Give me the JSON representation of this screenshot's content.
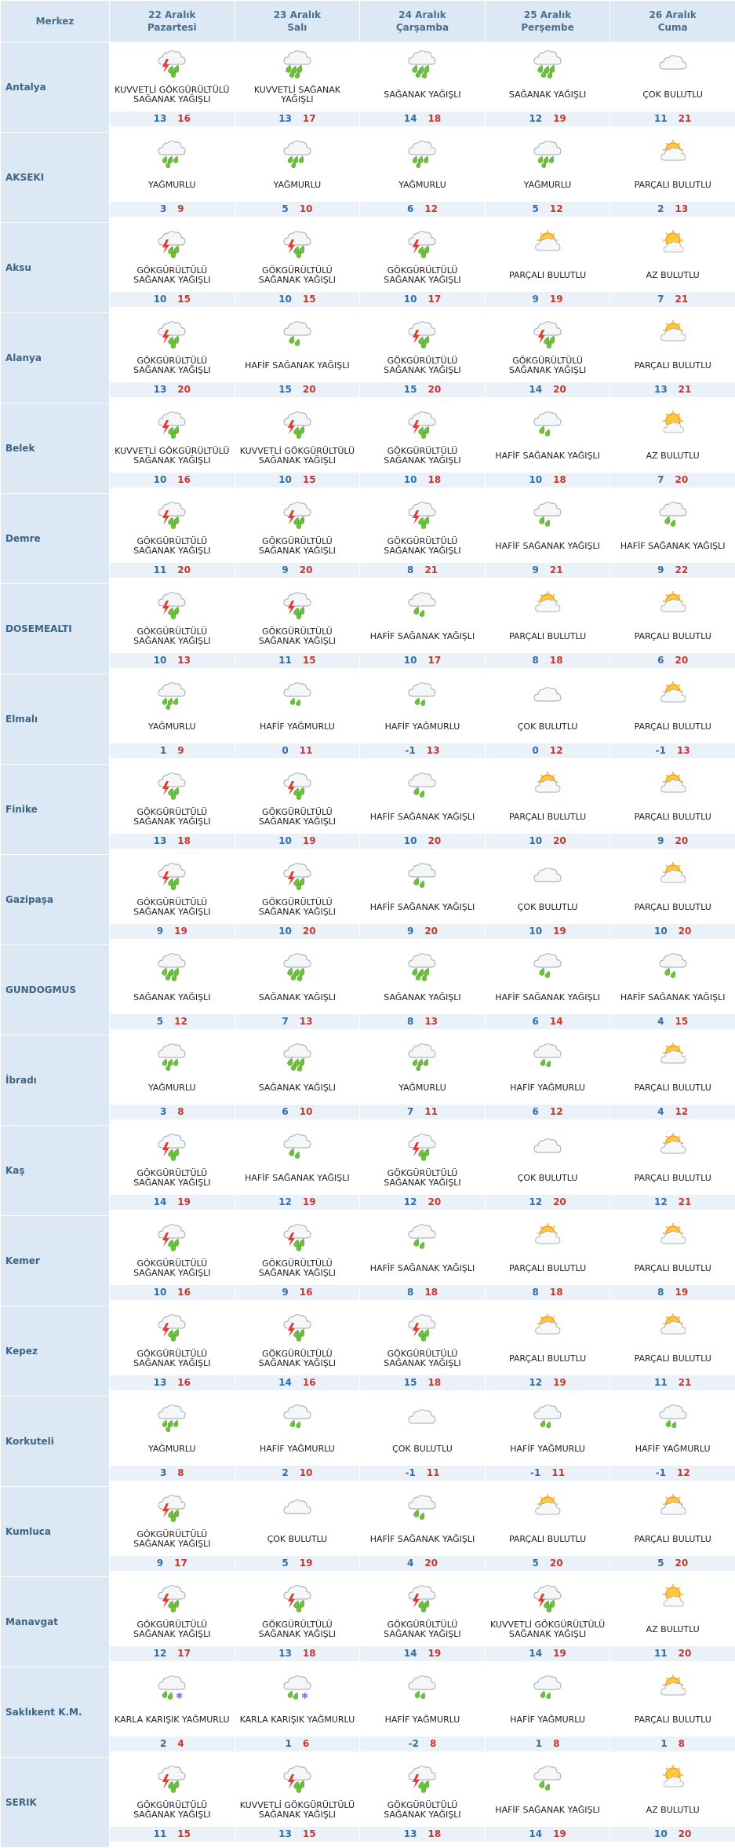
{
  "header": {
    "location_label": "Merkez",
    "days": [
      {
        "date": "22 Aralık",
        "weekday": "Pazartesi"
      },
      {
        "date": "23 Aralık",
        "weekday": "Salı"
      },
      {
        "date": "24 Aralık",
        "weekday": "Çarşamba"
      },
      {
        "date": "25 Aralık",
        "weekday": "Perşembe"
      },
      {
        "date": "26 Aralık",
        "weekday": "Cuma"
      }
    ]
  },
  "colors": {
    "header_bg": "#dce8f3",
    "temp_row_bg": "#eaf1f8",
    "min_temp": "#2f6ea6",
    "max_temp": "#c8372d",
    "location_text": "#3e6485"
  },
  "rows": [
    {
      "name": "Antalya",
      "days": [
        {
          "icon": "thunder",
          "desc": "KUVVETLİ GÖKGÜRÜLTÜLÜ SAĞANAK YAĞIŞLI",
          "min": "13",
          "max": "16"
        },
        {
          "icon": "heavy-shower",
          "desc": "KUVVETLİ SAĞANAK YAĞIŞLI",
          "min": "13",
          "max": "17"
        },
        {
          "icon": "shower",
          "desc": "SAĞANAK YAĞIŞLI",
          "min": "14",
          "max": "18"
        },
        {
          "icon": "shower",
          "desc": "SAĞANAK YAĞIŞLI",
          "min": "12",
          "max": "19"
        },
        {
          "icon": "cloudy",
          "desc": "ÇOK BULUTLU",
          "min": "11",
          "max": "21"
        }
      ]
    },
    {
      "name": "AKSEKI",
      "days": [
        {
          "icon": "rain",
          "desc": "YAĞMURLU",
          "min": "3",
          "max": "9"
        },
        {
          "icon": "rain",
          "desc": "YAĞMURLU",
          "min": "5",
          "max": "10"
        },
        {
          "icon": "rain",
          "desc": "YAĞMURLU",
          "min": "6",
          "max": "12"
        },
        {
          "icon": "rain",
          "desc": "YAĞMURLU",
          "min": "5",
          "max": "12"
        },
        {
          "icon": "partly",
          "desc": "PARÇALI BULUTLU",
          "min": "2",
          "max": "13"
        }
      ]
    },
    {
      "name": "Aksu",
      "days": [
        {
          "icon": "thunder",
          "desc": "GÖKGÜRÜLTÜLÜ SAĞANAK YAĞIŞLI",
          "min": "10",
          "max": "15"
        },
        {
          "icon": "thunder",
          "desc": "GÖKGÜRÜLTÜLÜ SAĞANAK YAĞIŞLI",
          "min": "10",
          "max": "15"
        },
        {
          "icon": "thunder",
          "desc": "GÖKGÜRÜLTÜLÜ SAĞANAK YAĞIŞLI",
          "min": "10",
          "max": "17"
        },
        {
          "icon": "partly",
          "desc": "PARÇALI BULUTLU",
          "min": "9",
          "max": "19"
        },
        {
          "icon": "sunny",
          "desc": "AZ BULUTLU",
          "min": "7",
          "max": "21"
        }
      ]
    },
    {
      "name": "Alanya",
      "days": [
        {
          "icon": "thunder",
          "desc": "GÖKGÜRÜLTÜLÜ SAĞANAK YAĞIŞLI",
          "min": "13",
          "max": "20"
        },
        {
          "icon": "light-shower",
          "desc": "HAFİF SAĞANAK YAĞIŞLI",
          "min": "15",
          "max": "20"
        },
        {
          "icon": "thunder",
          "desc": "GÖKGÜRÜLTÜLÜ SAĞANAK YAĞIŞLI",
          "min": "15",
          "max": "20"
        },
        {
          "icon": "thunder",
          "desc": "GÖKGÜRÜLTÜLÜ SAĞANAK YAĞIŞLI",
          "min": "14",
          "max": "20"
        },
        {
          "icon": "partly",
          "desc": "PARÇALI BULUTLU",
          "min": "13",
          "max": "21"
        }
      ]
    },
    {
      "name": "Belek",
      "days": [
        {
          "icon": "thunder",
          "desc": "KUVVETLİ GÖKGÜRÜLTÜLÜ SAĞANAK YAĞIŞLI",
          "min": "10",
          "max": "16"
        },
        {
          "icon": "thunder",
          "desc": "KUVVETLİ GÖKGÜRÜLTÜLÜ SAĞANAK YAĞIŞLI",
          "min": "10",
          "max": "15"
        },
        {
          "icon": "thunder",
          "desc": "GÖKGÜRÜLTÜLÜ SAĞANAK YAĞIŞLI",
          "min": "10",
          "max": "18"
        },
        {
          "icon": "light-shower",
          "desc": "HAFİF SAĞANAK YAĞIŞLI",
          "min": "10",
          "max": "18"
        },
        {
          "icon": "sunny",
          "desc": "AZ BULUTLU",
          "min": "7",
          "max": "20"
        }
      ]
    },
    {
      "name": "Demre",
      "days": [
        {
          "icon": "thunder",
          "desc": "GÖKGÜRÜLTÜLÜ SAĞANAK YAĞIŞLI",
          "min": "11",
          "max": "20"
        },
        {
          "icon": "thunder",
          "desc": "GÖKGÜRÜLTÜLÜ SAĞANAK YAĞIŞLI",
          "min": "9",
          "max": "20"
        },
        {
          "icon": "thunder",
          "desc": "GÖKGÜRÜLTÜLÜ SAĞANAK YAĞIŞLI",
          "min": "8",
          "max": "21"
        },
        {
          "icon": "light-shower",
          "desc": "HAFİF SAĞANAK YAĞIŞLI",
          "min": "9",
          "max": "21"
        },
        {
          "icon": "light-shower",
          "desc": "HAFİF SAĞANAK YAĞIŞLI",
          "min": "9",
          "max": "22"
        }
      ]
    },
    {
      "name": "DOSEMEALTI",
      "days": [
        {
          "icon": "thunder",
          "desc": "GÖKGÜRÜLTÜLÜ SAĞANAK YAĞIŞLI",
          "min": "10",
          "max": "13"
        },
        {
          "icon": "thunder",
          "desc": "GÖKGÜRÜLTÜLÜ SAĞANAK YAĞIŞLI",
          "min": "11",
          "max": "15"
        },
        {
          "icon": "light-shower",
          "desc": "HAFİF SAĞANAK YAĞIŞLI",
          "min": "10",
          "max": "17"
        },
        {
          "icon": "partly",
          "desc": "PARÇALI BULUTLU",
          "min": "8",
          "max": "18"
        },
        {
          "icon": "partly",
          "desc": "PARÇALI BULUTLU",
          "min": "6",
          "max": "20"
        }
      ]
    },
    {
      "name": "Elmalı",
      "days": [
        {
          "icon": "rain",
          "desc": "YAĞMURLU",
          "min": "1",
          "max": "9"
        },
        {
          "icon": "light-rain",
          "desc": "HAFİF YAĞMURLU",
          "min": "0",
          "max": "11"
        },
        {
          "icon": "light-rain",
          "desc": "HAFİF YAĞMURLU",
          "min": "-1",
          "max": "13"
        },
        {
          "icon": "cloudy",
          "desc": "ÇOK BULUTLU",
          "min": "0",
          "max": "12"
        },
        {
          "icon": "partly",
          "desc": "PARÇALI BULUTLU",
          "min": "-1",
          "max": "13"
        }
      ]
    },
    {
      "name": "Finike",
      "days": [
        {
          "icon": "thunder",
          "desc": "GÖKGÜRÜLTÜLÜ SAĞANAK YAĞIŞLI",
          "min": "13",
          "max": "18"
        },
        {
          "icon": "thunder",
          "desc": "GÖKGÜRÜLTÜLÜ SAĞANAK YAĞIŞLI",
          "min": "10",
          "max": "19"
        },
        {
          "icon": "light-shower",
          "desc": "HAFİF SAĞANAK YAĞIŞLI",
          "min": "10",
          "max": "20"
        },
        {
          "icon": "partly",
          "desc": "PARÇALI BULUTLU",
          "min": "10",
          "max": "20"
        },
        {
          "icon": "partly",
          "desc": "PARÇALI BULUTLU",
          "min": "9",
          "max": "20"
        }
      ]
    },
    {
      "name": "Gazipaşa",
      "days": [
        {
          "icon": "thunder",
          "desc": "GÖKGÜRÜLTÜLÜ SAĞANAK YAĞIŞLI",
          "min": "9",
          "max": "19"
        },
        {
          "icon": "thunder",
          "desc": "GÖKGÜRÜLTÜLÜ SAĞANAK YAĞIŞLI",
          "min": "10",
          "max": "20"
        },
        {
          "icon": "light-shower",
          "desc": "HAFİF SAĞANAK YAĞIŞLI",
          "min": "9",
          "max": "20"
        },
        {
          "icon": "cloudy",
          "desc": "ÇOK BULUTLU",
          "min": "10",
          "max": "19"
        },
        {
          "icon": "partly",
          "desc": "PARÇALI BULUTLU",
          "min": "10",
          "max": "20"
        }
      ]
    },
    {
      "name": "GUNDOGMUS",
      "days": [
        {
          "icon": "shower",
          "desc": "SAĞANAK YAĞIŞLI",
          "min": "5",
          "max": "12"
        },
        {
          "icon": "shower",
          "desc": "SAĞANAK YAĞIŞLI",
          "min": "7",
          "max": "13"
        },
        {
          "icon": "shower",
          "desc": "SAĞANAK YAĞIŞLI",
          "min": "8",
          "max": "13"
        },
        {
          "icon": "light-shower",
          "desc": "HAFİF SAĞANAK YAĞIŞLI",
          "min": "6",
          "max": "14"
        },
        {
          "icon": "light-shower",
          "desc": "HAFİF SAĞANAK YAĞIŞLI",
          "min": "4",
          "max": "15"
        }
      ]
    },
    {
      "name": "İbradı",
      "days": [
        {
          "icon": "rain",
          "desc": "YAĞMURLU",
          "min": "3",
          "max": "8"
        },
        {
          "icon": "shower",
          "desc": "SAĞANAK YAĞIŞLI",
          "min": "6",
          "max": "10"
        },
        {
          "icon": "rain",
          "desc": "YAĞMURLU",
          "min": "7",
          "max": "11"
        },
        {
          "icon": "light-rain",
          "desc": "HAFİF YAĞMURLU",
          "min": "6",
          "max": "12"
        },
        {
          "icon": "partly",
          "desc": "PARÇALI BULUTLU",
          "min": "4",
          "max": "12"
        }
      ]
    },
    {
      "name": "Kaş",
      "days": [
        {
          "icon": "thunder",
          "desc": "GÖKGÜRÜLTÜLÜ SAĞANAK YAĞIŞLI",
          "min": "14",
          "max": "19"
        },
        {
          "icon": "light-shower",
          "desc": "HAFİF SAĞANAK YAĞIŞLI",
          "min": "12",
          "max": "19"
        },
        {
          "icon": "thunder",
          "desc": "GÖKGÜRÜLTÜLÜ SAĞANAK YAĞIŞLI",
          "min": "12",
          "max": "20"
        },
        {
          "icon": "cloudy",
          "desc": "ÇOK BULUTLU",
          "min": "12",
          "max": "20"
        },
        {
          "icon": "partly",
          "desc": "PARÇALI BULUTLU",
          "min": "12",
          "max": "21"
        }
      ]
    },
    {
      "name": "Kemer",
      "days": [
        {
          "icon": "thunder",
          "desc": "GÖKGÜRÜLTÜLÜ SAĞANAK YAĞIŞLI",
          "min": "10",
          "max": "16"
        },
        {
          "icon": "thunder",
          "desc": "GÖKGÜRÜLTÜLÜ SAĞANAK YAĞIŞLI",
          "min": "9",
          "max": "16"
        },
        {
          "icon": "light-shower",
          "desc": "HAFİF SAĞANAK YAĞIŞLI",
          "min": "8",
          "max": "18"
        },
        {
          "icon": "partly",
          "desc": "PARÇALI BULUTLU",
          "min": "8",
          "max": "18"
        },
        {
          "icon": "partly",
          "desc": "PARÇALI BULUTLU",
          "min": "8",
          "max": "19"
        }
      ]
    },
    {
      "name": "Kepez",
      "days": [
        {
          "icon": "thunder",
          "desc": "GÖKGÜRÜLTÜLÜ SAĞANAK YAĞIŞLI",
          "min": "13",
          "max": "16"
        },
        {
          "icon": "thunder",
          "desc": "GÖKGÜRÜLTÜLÜ SAĞANAK YAĞIŞLI",
          "min": "14",
          "max": "16"
        },
        {
          "icon": "thunder",
          "desc": "GÖKGÜRÜLTÜLÜ SAĞANAK YAĞIŞLI",
          "min": "15",
          "max": "18"
        },
        {
          "icon": "partly",
          "desc": "PARÇALI BULUTLU",
          "min": "12",
          "max": "19"
        },
        {
          "icon": "partly",
          "desc": "PARÇALI BULUTLU",
          "min": "11",
          "max": "21"
        }
      ]
    },
    {
      "name": "Korkuteli",
      "days": [
        {
          "icon": "rain",
          "desc": "YAĞMURLU",
          "min": "3",
          "max": "8"
        },
        {
          "icon": "light-rain",
          "desc": "HAFİF YAĞMURLU",
          "min": "2",
          "max": "10"
        },
        {
          "icon": "cloudy",
          "desc": "ÇOK BULUTLU",
          "min": "-1",
          "max": "11"
        },
        {
          "icon": "light-rain",
          "desc": "HAFİF YAĞMURLU",
          "min": "-1",
          "max": "11"
        },
        {
          "icon": "light-rain",
          "desc": "HAFİF YAĞMURLU",
          "min": "-1",
          "max": "12"
        }
      ]
    },
    {
      "name": "Kumluca",
      "days": [
        {
          "icon": "thunder",
          "desc": "GÖKGÜRÜLTÜLÜ SAĞANAK YAĞIŞLI",
          "min": "9",
          "max": "17"
        },
        {
          "icon": "cloudy",
          "desc": "ÇOK BULUTLU",
          "min": "5",
          "max": "19"
        },
        {
          "icon": "light-shower",
          "desc": "HAFİF SAĞANAK YAĞIŞLI",
          "min": "4",
          "max": "20"
        },
        {
          "icon": "partly",
          "desc": "PARÇALI BULUTLU",
          "min": "5",
          "max": "20"
        },
        {
          "icon": "partly",
          "desc": "PARÇALI BULUTLU",
          "min": "5",
          "max": "20"
        }
      ]
    },
    {
      "name": "Manavgat",
      "days": [
        {
          "icon": "thunder",
          "desc": "GÖKGÜRÜLTÜLÜ SAĞANAK YAĞIŞLI",
          "min": "12",
          "max": "17"
        },
        {
          "icon": "thunder",
          "desc": "GÖKGÜRÜLTÜLÜ SAĞANAK YAĞIŞLI",
          "min": "13",
          "max": "18"
        },
        {
          "icon": "thunder",
          "desc": "GÖKGÜRÜLTÜLÜ SAĞANAK YAĞIŞLI",
          "min": "14",
          "max": "19"
        },
        {
          "icon": "thunder",
          "desc": "KUVVETLİ GÖKGÜRÜLTÜLÜ SAĞANAK YAĞIŞLI",
          "min": "14",
          "max": "19"
        },
        {
          "icon": "sunny",
          "desc": "AZ BULUTLU",
          "min": "11",
          "max": "20"
        }
      ]
    },
    {
      "name": "Saklıkent K.M.",
      "days": [
        {
          "icon": "sleet",
          "desc": "KARLA KARIŞIK YAĞMURLU",
          "min": "2",
          "max": "4"
        },
        {
          "icon": "sleet",
          "desc": "KARLA KARIŞIK YAĞMURLU",
          "min": "1",
          "max": "6"
        },
        {
          "icon": "light-rain",
          "desc": "HAFİF YAĞMURLU",
          "min": "-2",
          "max": "8"
        },
        {
          "icon": "light-rain",
          "desc": "HAFİF YAĞMURLU",
          "min": "1",
          "max": "8"
        },
        {
          "icon": "partly",
          "desc": "PARÇALI BULUTLU",
          "min": "1",
          "max": "8"
        }
      ]
    },
    {
      "name": "SERIK",
      "days": [
        {
          "icon": "thunder",
          "desc": "GÖKGÜRÜLTÜLÜ SAĞANAK YAĞIŞLI",
          "min": "11",
          "max": "15"
        },
        {
          "icon": "thunder",
          "desc": "KUVVETLİ GÖKGÜRÜLTÜLÜ SAĞANAK YAĞIŞLI",
          "min": "13",
          "max": "15"
        },
        {
          "icon": "thunder",
          "desc": "GÖKGÜRÜLTÜLÜ SAĞANAK YAĞIŞLI",
          "min": "13",
          "max": "18"
        },
        {
          "icon": "light-shower",
          "desc": "HAFİF SAĞANAK YAĞIŞLI",
          "min": "14",
          "max": "19"
        },
        {
          "icon": "sunny",
          "desc": "AZ BULUTLU",
          "min": "10",
          "max": "20"
        }
      ]
    }
  ]
}
